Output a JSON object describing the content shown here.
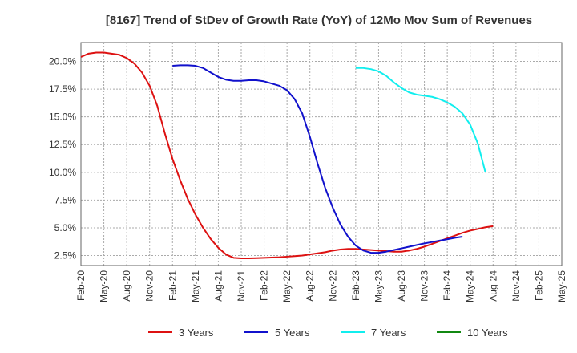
{
  "chart_data": {
    "type": "line",
    "title": "[8167]  Trend of StDev of Growth Rate (YoY) of 12Mo Mov Sum of Revenues",
    "xlabel": "",
    "ylabel": "",
    "ylim": [
      1.6,
      21.7
    ],
    "yticks": [
      2.5,
      5.0,
      7.5,
      10.0,
      12.5,
      15.0,
      17.5,
      20.0
    ],
    "ytick_labels": [
      "2.5%",
      "5.0%",
      "7.5%",
      "10.0%",
      "12.5%",
      "15.0%",
      "17.5%",
      "20.0%"
    ],
    "xtick_labels": [
      "Feb-20",
      "May-20",
      "Aug-20",
      "Nov-20",
      "Feb-21",
      "May-21",
      "Aug-21",
      "Nov-21",
      "Feb-22",
      "May-22",
      "Aug-22",
      "Nov-22",
      "Feb-23",
      "May-23",
      "Aug-23",
      "Nov-23",
      "Feb-24",
      "May-24",
      "Aug-24",
      "Nov-24",
      "Feb-25",
      "May-25"
    ],
    "grid": true,
    "legend_position": "bottom",
    "series": [
      {
        "name": "3 Years",
        "color": "#dd1111",
        "points": [
          [
            0,
            20.4
          ],
          [
            1,
            20.7
          ],
          [
            2,
            20.8
          ],
          [
            3,
            20.8
          ],
          [
            4,
            20.7
          ],
          [
            5,
            20.6
          ],
          [
            6,
            20.3
          ],
          [
            7,
            19.8
          ],
          [
            8,
            19.0
          ],
          [
            9,
            17.8
          ],
          [
            10,
            16.0
          ],
          [
            11,
            13.5
          ],
          [
            12,
            11.2
          ],
          [
            13,
            9.3
          ],
          [
            14,
            7.6
          ],
          [
            15,
            6.2
          ],
          [
            16,
            5.0
          ],
          [
            17,
            4.0
          ],
          [
            18,
            3.2
          ],
          [
            19,
            2.6
          ],
          [
            20,
            2.3
          ],
          [
            21,
            2.25
          ],
          [
            22,
            2.25
          ],
          [
            23,
            2.27
          ],
          [
            24,
            2.3
          ],
          [
            25,
            2.32
          ],
          [
            26,
            2.35
          ],
          [
            27,
            2.4
          ],
          [
            28,
            2.45
          ],
          [
            29,
            2.5
          ],
          [
            30,
            2.6
          ],
          [
            31,
            2.7
          ],
          [
            32,
            2.8
          ],
          [
            33,
            2.95
          ],
          [
            34,
            3.05
          ],
          [
            35,
            3.1
          ],
          [
            36,
            3.1
          ],
          [
            37,
            3.05
          ],
          [
            38,
            3.0
          ],
          [
            39,
            2.95
          ],
          [
            40,
            2.9
          ],
          [
            41,
            2.85
          ],
          [
            42,
            2.85
          ],
          [
            43,
            2.95
          ],
          [
            44,
            3.1
          ],
          [
            45,
            3.3
          ],
          [
            46,
            3.55
          ],
          [
            47,
            3.8
          ],
          [
            48,
            4.05
          ],
          [
            49,
            4.3
          ],
          [
            50,
            4.55
          ],
          [
            51,
            4.75
          ],
          [
            52,
            4.9
          ],
          [
            53,
            5.05
          ],
          [
            54,
            5.15
          ]
        ]
      },
      {
        "name": "5 Years",
        "color": "#1111cc",
        "points": [
          [
            12,
            19.6
          ],
          [
            13,
            19.65
          ],
          [
            14,
            19.65
          ],
          [
            15,
            19.6
          ],
          [
            16,
            19.4
          ],
          [
            17,
            19.0
          ],
          [
            18,
            18.6
          ],
          [
            19,
            18.35
          ],
          [
            20,
            18.25
          ],
          [
            21,
            18.25
          ],
          [
            22,
            18.3
          ],
          [
            23,
            18.3
          ],
          [
            24,
            18.2
          ],
          [
            25,
            18.0
          ],
          [
            26,
            17.8
          ],
          [
            27,
            17.4
          ],
          [
            28,
            16.6
          ],
          [
            29,
            15.3
          ],
          [
            30,
            13.2
          ],
          [
            31,
            10.8
          ],
          [
            32,
            8.6
          ],
          [
            33,
            6.8
          ],
          [
            34,
            5.3
          ],
          [
            35,
            4.2
          ],
          [
            36,
            3.4
          ],
          [
            37,
            2.95
          ],
          [
            38,
            2.75
          ],
          [
            39,
            2.75
          ],
          [
            40,
            2.85
          ],
          [
            41,
            3.0
          ],
          [
            42,
            3.15
          ],
          [
            43,
            3.3
          ],
          [
            44,
            3.45
          ],
          [
            45,
            3.6
          ],
          [
            46,
            3.72
          ],
          [
            47,
            3.85
          ],
          [
            48,
            3.97
          ],
          [
            49,
            4.1
          ],
          [
            50,
            4.2
          ]
        ]
      },
      {
        "name": "7 Years",
        "color": "#11eeee",
        "points": [
          [
            36,
            19.4
          ],
          [
            37,
            19.4
          ],
          [
            38,
            19.3
          ],
          [
            39,
            19.1
          ],
          [
            40,
            18.7
          ],
          [
            41,
            18.1
          ],
          [
            42,
            17.6
          ],
          [
            43,
            17.2
          ],
          [
            44,
            17.0
          ],
          [
            45,
            16.9
          ],
          [
            46,
            16.8
          ],
          [
            47,
            16.6
          ],
          [
            48,
            16.3
          ],
          [
            49,
            15.9
          ],
          [
            50,
            15.3
          ],
          [
            51,
            14.3
          ],
          [
            52,
            12.6
          ],
          [
            53,
            10.0
          ]
        ]
      },
      {
        "name": "10 Years",
        "color": "#118811",
        "points": []
      }
    ]
  }
}
